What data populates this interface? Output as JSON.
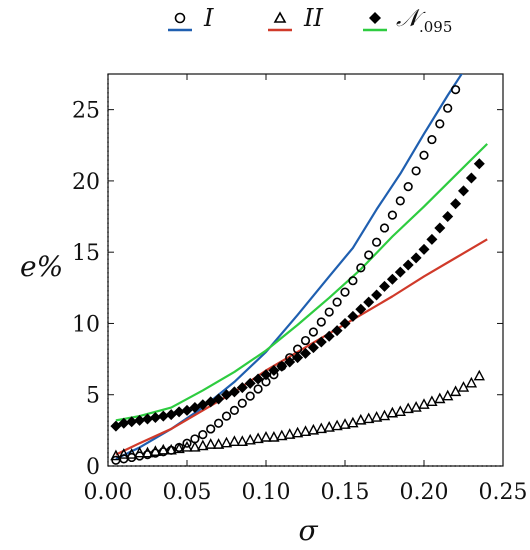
{
  "chart_data": {
    "type": "line",
    "xlabel": "σ",
    "ylabel": "e%",
    "xlim": [
      0.0,
      0.25
    ],
    "ylim": [
      0,
      27.5
    ],
    "xticks": [
      {
        "value": 0.0,
        "label": "0.00"
      },
      {
        "value": 0.05,
        "label": "0.05"
      },
      {
        "value": 0.1,
        "label": "0.10"
      },
      {
        "value": 0.15,
        "label": "0.15"
      },
      {
        "value": 0.2,
        "label": "0.20"
      },
      {
        "value": 0.25,
        "label": "0.25"
      }
    ],
    "yticks": [
      {
        "value": 0,
        "label": "0"
      },
      {
        "value": 5,
        "label": "5"
      },
      {
        "value": 10,
        "label": "10"
      },
      {
        "value": 15,
        "label": "15"
      },
      {
        "value": 20,
        "label": "20"
      },
      {
        "value": 25,
        "label": "25"
      }
    ],
    "grid": false,
    "legend_position": "top",
    "reference_lines": {
      "x": 0,
      "y": 0,
      "style": "dotted"
    },
    "legend": [
      {
        "key": "I_points",
        "label": "I",
        "marker": "circle-open"
      },
      {
        "key": "I_line",
        "label": "",
        "line_color": "#1f5fb0"
      },
      {
        "key": "II_points",
        "label": "II",
        "marker": "triangle-open"
      },
      {
        "key": "II_line",
        "label": "",
        "line_color": "#d03a2a"
      },
      {
        "key": "N_points",
        "label": "𝒩",
        "label_sub": ".095",
        "marker": "diamond-filled"
      },
      {
        "key": "N_line",
        "label": "",
        "line_color": "#2ecc40"
      }
    ],
    "series": [
      {
        "key": "I_points",
        "kind": "markers",
        "marker": "circle-open",
        "color": "#000000",
        "x": [
          0.005,
          0.01,
          0.015,
          0.02,
          0.025,
          0.03,
          0.035,
          0.04,
          0.045,
          0.05,
          0.055,
          0.06,
          0.065,
          0.07,
          0.075,
          0.08,
          0.085,
          0.09,
          0.095,
          0.1,
          0.105,
          0.11,
          0.115,
          0.12,
          0.125,
          0.13,
          0.135,
          0.14,
          0.145,
          0.15,
          0.155,
          0.16,
          0.165,
          0.17,
          0.175,
          0.18,
          0.185,
          0.19,
          0.195,
          0.2,
          0.205,
          0.21,
          0.215,
          0.22
        ],
        "y": [
          0.4,
          0.5,
          0.6,
          0.7,
          0.8,
          0.9,
          1.0,
          1.1,
          1.3,
          1.6,
          1.9,
          2.2,
          2.6,
          3.0,
          3.5,
          3.9,
          4.4,
          4.9,
          5.4,
          5.9,
          6.4,
          7.0,
          7.6,
          8.2,
          8.8,
          9.4,
          10.1,
          10.8,
          11.5,
          12.2,
          13.0,
          13.9,
          14.8,
          15.7,
          16.7,
          17.6,
          18.6,
          19.6,
          20.7,
          21.8,
          22.9,
          24.0,
          25.1,
          26.4
        ]
      },
      {
        "key": "II_points",
        "kind": "markers",
        "marker": "triangle-open",
        "color": "#000000",
        "x": [
          0.005,
          0.01,
          0.015,
          0.02,
          0.025,
          0.03,
          0.035,
          0.04,
          0.045,
          0.05,
          0.055,
          0.06,
          0.065,
          0.07,
          0.075,
          0.08,
          0.085,
          0.09,
          0.095,
          0.1,
          0.105,
          0.11,
          0.115,
          0.12,
          0.125,
          0.13,
          0.135,
          0.14,
          0.145,
          0.15,
          0.155,
          0.16,
          0.165,
          0.17,
          0.175,
          0.18,
          0.185,
          0.19,
          0.195,
          0.2,
          0.205,
          0.21,
          0.215,
          0.22,
          0.225,
          0.23,
          0.235
        ],
        "y": [
          0.7,
          0.8,
          0.8,
          0.9,
          0.9,
          1.0,
          1.1,
          1.1,
          1.2,
          1.3,
          1.3,
          1.4,
          1.5,
          1.5,
          1.6,
          1.7,
          1.7,
          1.8,
          1.9,
          2.0,
          2.0,
          2.1,
          2.2,
          2.3,
          2.4,
          2.5,
          2.6,
          2.7,
          2.8,
          2.9,
          3.0,
          3.2,
          3.3,
          3.4,
          3.5,
          3.7,
          3.8,
          4.0,
          4.1,
          4.3,
          4.5,
          4.7,
          4.9,
          5.2,
          5.5,
          5.8,
          6.3
        ]
      },
      {
        "key": "N_points",
        "kind": "markers",
        "marker": "diamond-filled",
        "color": "#000000",
        "x": [
          0.005,
          0.01,
          0.015,
          0.02,
          0.025,
          0.03,
          0.035,
          0.04,
          0.045,
          0.05,
          0.055,
          0.06,
          0.065,
          0.07,
          0.075,
          0.08,
          0.085,
          0.09,
          0.095,
          0.1,
          0.105,
          0.11,
          0.115,
          0.12,
          0.125,
          0.13,
          0.135,
          0.14,
          0.145,
          0.15,
          0.155,
          0.16,
          0.165,
          0.17,
          0.175,
          0.18,
          0.185,
          0.19,
          0.195,
          0.2,
          0.205,
          0.21,
          0.215,
          0.22,
          0.225,
          0.23,
          0.235
        ],
        "y": [
          2.8,
          3.0,
          3.1,
          3.2,
          3.3,
          3.4,
          3.5,
          3.6,
          3.8,
          3.9,
          4.1,
          4.3,
          4.5,
          4.7,
          5.0,
          5.2,
          5.5,
          5.8,
          6.1,
          6.4,
          6.7,
          7.0,
          7.3,
          7.6,
          7.9,
          8.3,
          8.7,
          9.1,
          9.5,
          10.0,
          10.5,
          11.0,
          11.5,
          12.0,
          12.6,
          13.1,
          13.6,
          14.1,
          14.6,
          15.2,
          15.9,
          16.7,
          17.5,
          18.4,
          19.3,
          20.2,
          21.2
        ]
      },
      {
        "key": "I_line",
        "kind": "line",
        "color": "#1f5fb0",
        "x": [
          0.005,
          0.02,
          0.04,
          0.06,
          0.08,
          0.1,
          0.12,
          0.14,
          0.155,
          0.17,
          0.185,
          0.2,
          0.215,
          0.225
        ],
        "y": [
          0.5,
          1.3,
          2.6,
          4.1,
          5.9,
          8.0,
          10.6,
          13.3,
          15.3,
          18.0,
          20.5,
          23.3,
          26.0,
          27.7
        ]
      },
      {
        "key": "II_line",
        "kind": "line",
        "color": "#d03a2a",
        "x": [
          0.005,
          0.02,
          0.04,
          0.06,
          0.08,
          0.1,
          0.12,
          0.14,
          0.16,
          0.18,
          0.2,
          0.22,
          0.24
        ],
        "y": [
          0.8,
          1.6,
          2.6,
          3.9,
          5.2,
          6.7,
          8.0,
          9.3,
          10.6,
          11.9,
          13.3,
          14.6,
          15.9
        ]
      },
      {
        "key": "N_line",
        "kind": "line",
        "color": "#2ecc40",
        "x": [
          0.005,
          0.02,
          0.04,
          0.06,
          0.08,
          0.1,
          0.12,
          0.14,
          0.16,
          0.18,
          0.2,
          0.22,
          0.24
        ],
        "y": [
          3.2,
          3.5,
          4.1,
          5.3,
          6.6,
          8.1,
          9.9,
          11.8,
          13.8,
          16.1,
          18.2,
          20.4,
          22.6
        ]
      }
    ]
  }
}
